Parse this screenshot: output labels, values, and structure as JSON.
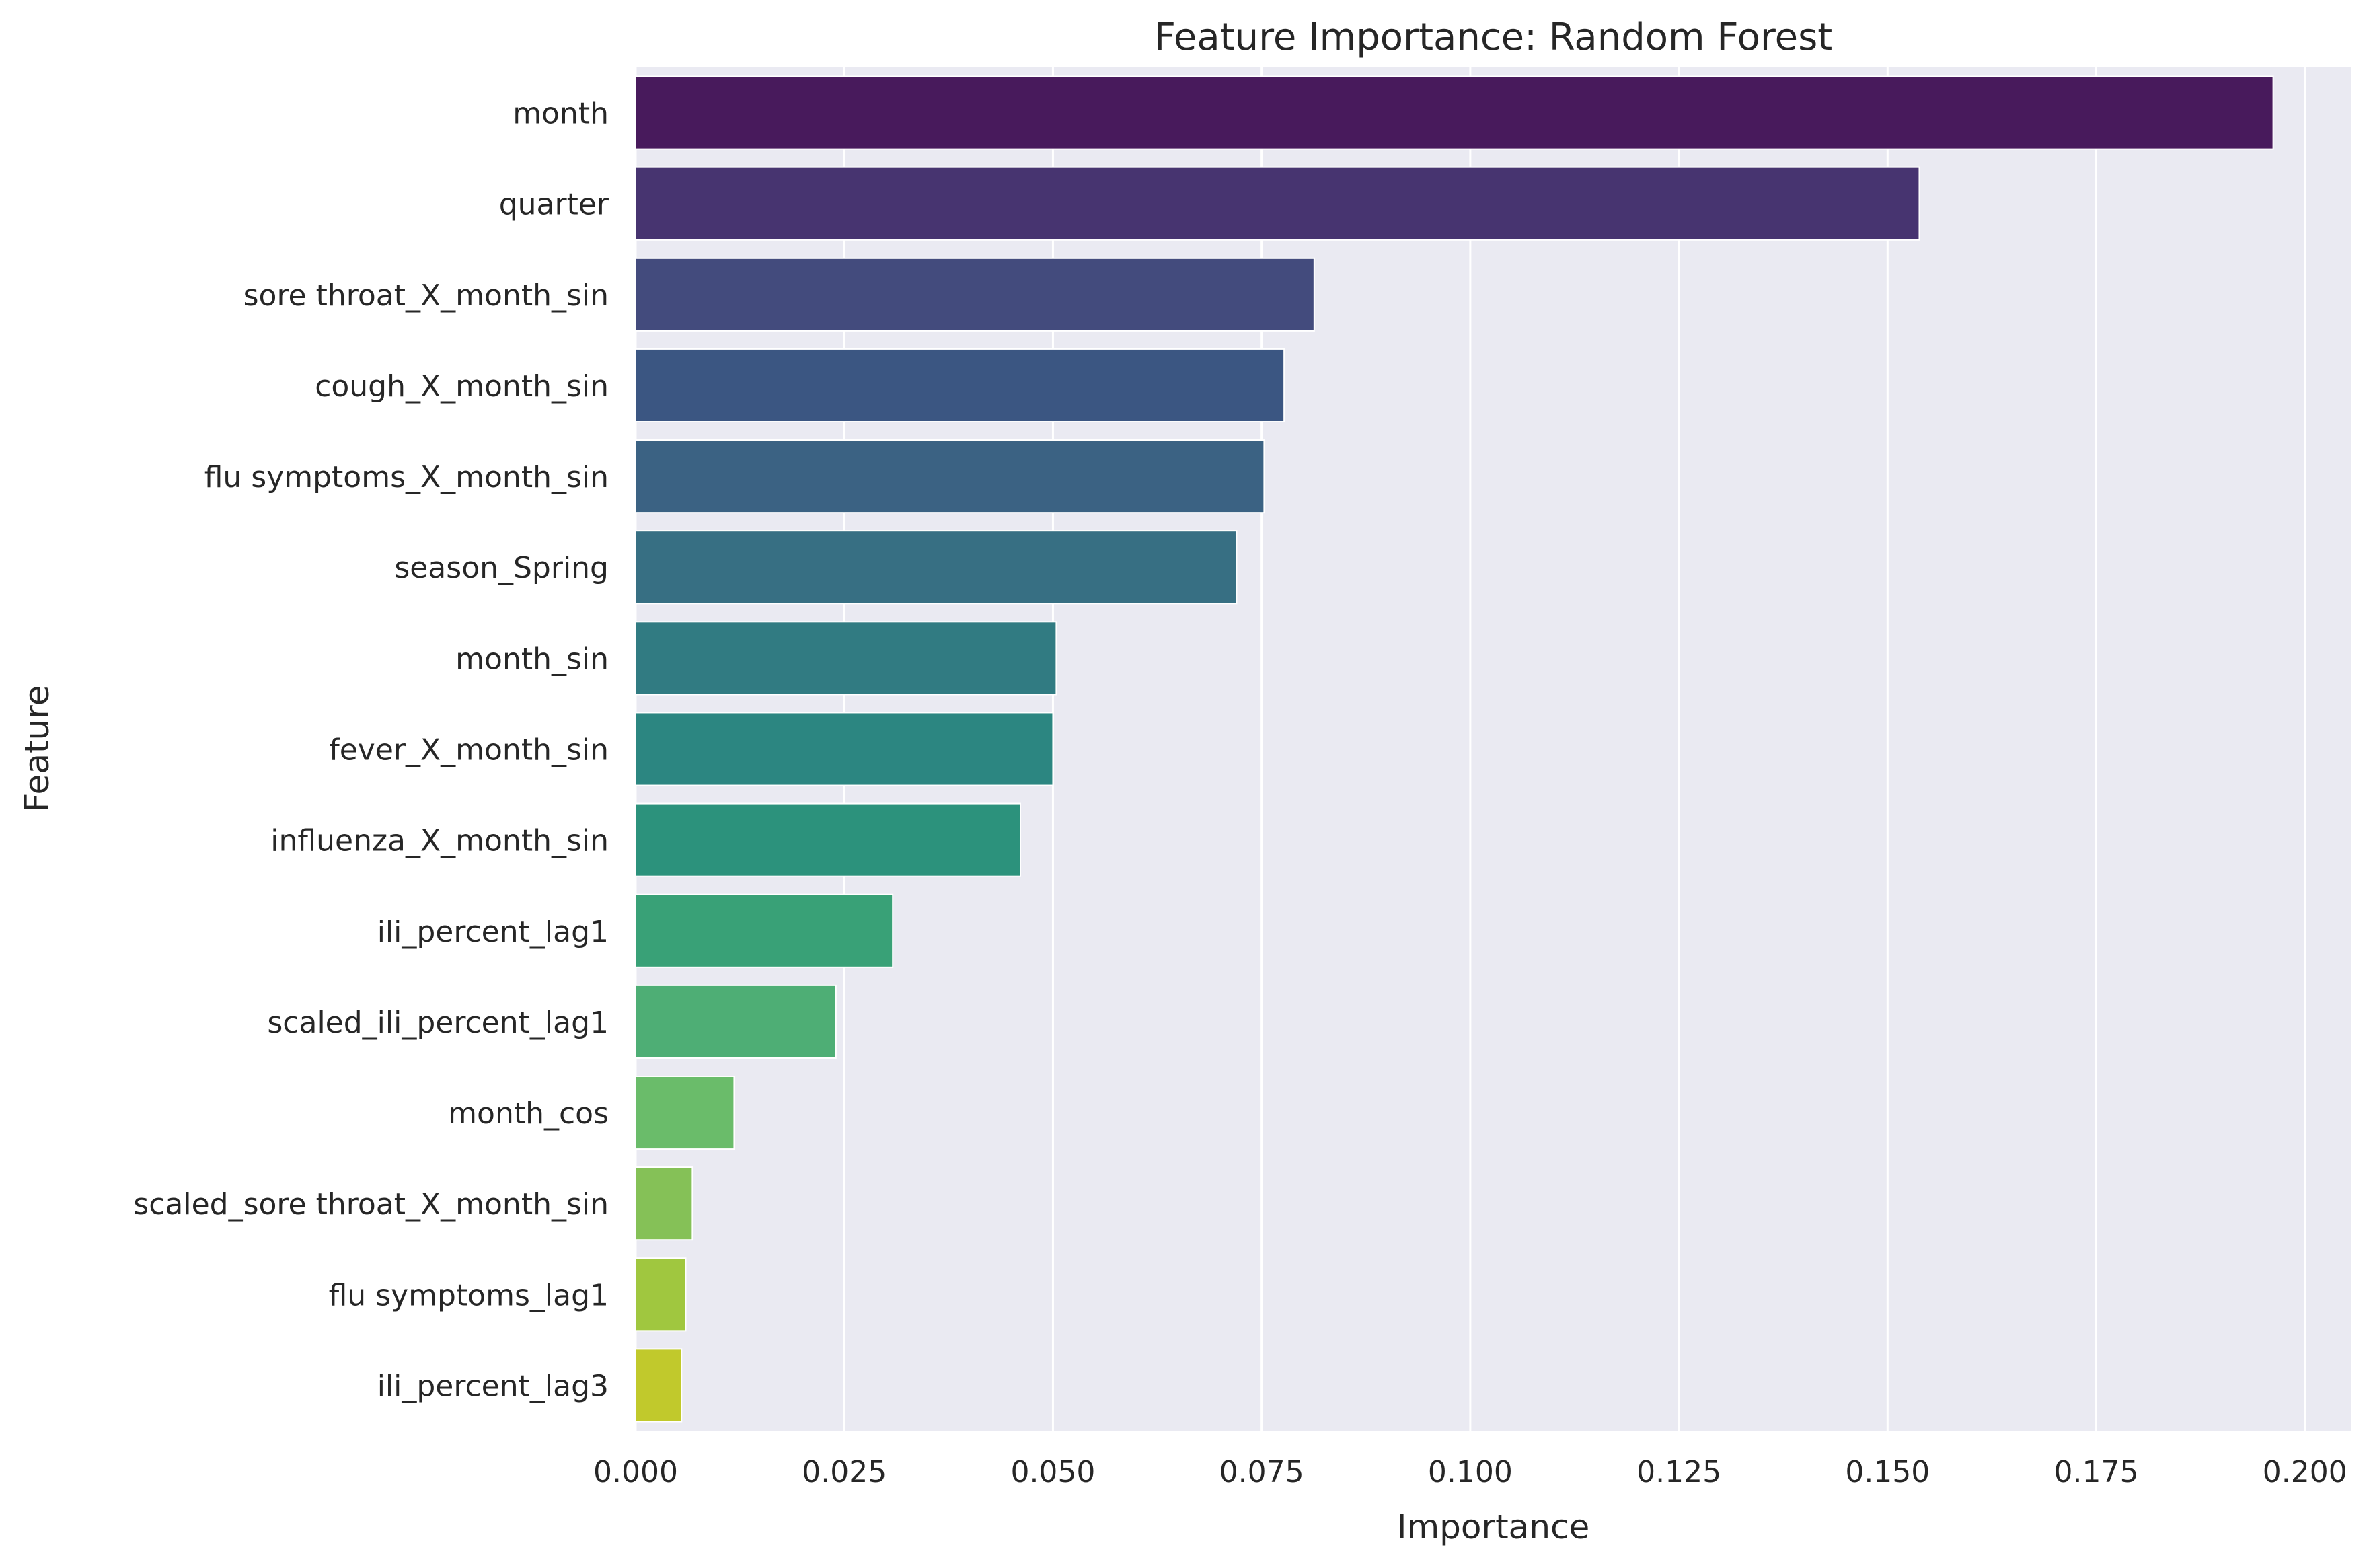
{
  "chart_data": {
    "type": "bar",
    "orientation": "horizontal",
    "title": "Feature Importance: Random Forest",
    "xlabel": "Importance",
    "ylabel": "Feature",
    "xlim": [
      0,
      0.2055
    ],
    "xticks": [
      0.0,
      0.025,
      0.05,
      0.075,
      0.1,
      0.125,
      0.15,
      0.175,
      0.2
    ],
    "xtick_labels": [
      "0.000",
      "0.025",
      "0.050",
      "0.075",
      "0.100",
      "0.125",
      "0.150",
      "0.175",
      "0.200"
    ],
    "grid": true,
    "background_color": "#eaeaf2",
    "grid_color": "#ffffff",
    "categories": [
      "month",
      "quarter",
      "sore throat_X_month_sin",
      "cough_X_month_sin",
      "flu symptoms_X_month_sin",
      "season_Spring",
      "month_sin",
      "fever_X_month_sin",
      "influenza_X_month_sin",
      "ili_percent_lag1",
      "scaled_ili_percent_lag1",
      "month_cos",
      "scaled_sore throat_X_month_sin",
      "flu symptoms_lag1",
      "ili_percent_lag3"
    ],
    "values": [
      0.1962,
      0.1538,
      0.0813,
      0.0777,
      0.0753,
      0.072,
      0.0504,
      0.05,
      0.0461,
      0.0308,
      0.024,
      0.0118,
      0.0068,
      0.006,
      0.0055
    ],
    "colors": [
      "#481a5c",
      "#473470",
      "#434b7d",
      "#3b5682",
      "#3b6283",
      "#376f83",
      "#317b82",
      "#2c8681",
      "#2c927c",
      "#39a177",
      "#4eae75",
      "#6abc6a",
      "#85c157",
      "#a0c73f",
      "#c1c92c"
    ]
  }
}
